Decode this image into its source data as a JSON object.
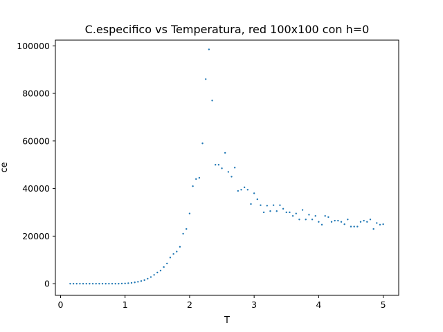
{
  "chart_data": {
    "type": "scatter",
    "title": "C.especifico vs Temperatura, red 100x100 con h=0",
    "xlabel": "T",
    "ylabel": "ce",
    "xlim": [
      -0.08,
      5.24
    ],
    "ylim": [
      -4900,
      102400
    ],
    "xticks": [
      0,
      1,
      2,
      3,
      4,
      5
    ],
    "yticks": [
      0,
      20000,
      40000,
      60000,
      80000,
      100000
    ],
    "grid": false,
    "marker_color": "#1f77b4",
    "x": [
      0.15,
      0.2,
      0.25,
      0.3,
      0.35,
      0.4,
      0.45,
      0.5,
      0.55,
      0.6,
      0.65,
      0.7,
      0.75,
      0.8,
      0.85,
      0.9,
      0.95,
      1.0,
      1.05,
      1.1,
      1.15,
      1.2,
      1.25,
      1.3,
      1.35,
      1.4,
      1.45,
      1.5,
      1.55,
      1.6,
      1.65,
      1.7,
      1.75,
      1.8,
      1.85,
      1.9,
      1.95,
      2.0,
      2.05,
      2.1,
      2.15,
      2.2,
      2.25,
      2.3,
      2.35,
      2.4,
      2.45,
      2.5,
      2.55,
      2.6,
      2.65,
      2.7,
      2.75,
      2.8,
      2.85,
      2.9,
      2.95,
      3.0,
      3.05,
      3.1,
      3.15,
      3.2,
      3.25,
      3.3,
      3.35,
      3.4,
      3.45,
      3.5,
      3.55,
      3.6,
      3.65,
      3.7,
      3.75,
      3.8,
      3.85,
      3.9,
      3.95,
      4.0,
      4.05,
      4.1,
      4.15,
      4.2,
      4.25,
      4.3,
      4.35,
      4.4,
      4.45,
      4.5,
      4.55,
      4.6,
      4.65,
      4.7,
      4.75,
      4.8,
      4.85,
      4.9,
      4.95,
      5.0
    ],
    "y": [
      0,
      0,
      0,
      0,
      0,
      0,
      0,
      0,
      0,
      0,
      0,
      0,
      0,
      0,
      0,
      0,
      50,
      100,
      200,
      350,
      550,
      800,
      1100,
      1500,
      2100,
      2800,
      3700,
      4700,
      5500,
      7000,
      8500,
      11000,
      12500,
      13500,
      15500,
      21000,
      23000,
      29500,
      41000,
      44000,
      44500,
      59000,
      86000,
      98500,
      77000,
      50000,
      50000,
      48500,
      55000,
      47000,
      45000,
      48800,
      39000,
      39500,
      40500,
      39500,
      33500,
      38000,
      35500,
      33000,
      30000,
      32800,
      30500,
      33000,
      30500,
      33000,
      31500,
      30000,
      30000,
      28500,
      29500,
      27000,
      31000,
      27000,
      29000,
      27000,
      28500,
      26000,
      24800,
      28500,
      28000,
      26000,
      26500,
      26500,
      26000,
      25000,
      27000,
      24000,
      24000,
      24000,
      26000,
      26500,
      26000,
      27000,
      23000,
      25500,
      24800,
      25000
    ]
  }
}
